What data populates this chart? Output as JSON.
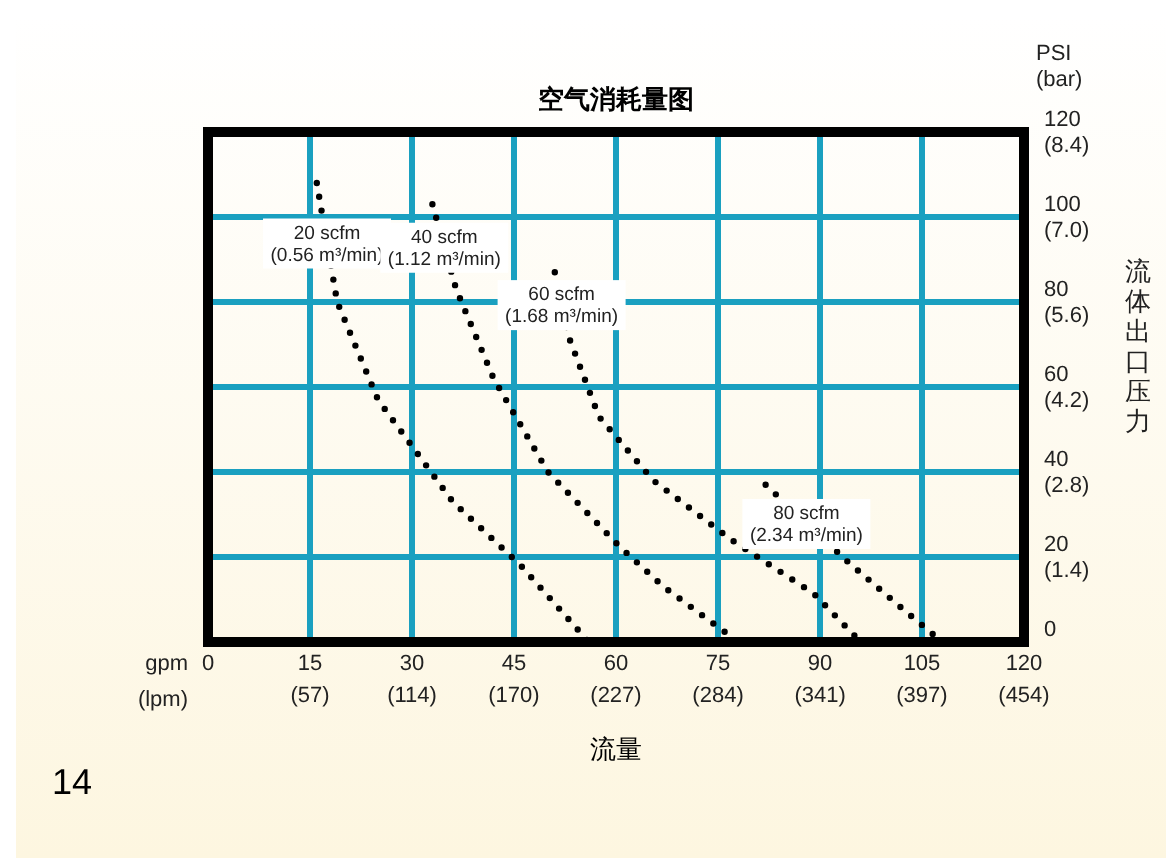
{
  "chart_data": {
    "type": "line",
    "title": "空气消耗量图",
    "xlabel": "流量",
    "y2label": "流体出口压力",
    "annotations": [
      "gpm",
      "(lpm)",
      "PSI",
      "(bar)",
      "14"
    ],
    "xlim": [
      0,
      120
    ],
    "ylim": [
      0,
      120
    ],
    "xticks": [
      0,
      15,
      30,
      45,
      60,
      75,
      90,
      105,
      120
    ],
    "x2lim": [
      0,
      454.2
    ],
    "x2ticks": [
      {
        "value": 56.8,
        "label": "(57)"
      },
      {
        "value": 113.6,
        "label": "(114)"
      },
      {
        "value": 170.3,
        "label": "(170)"
      },
      {
        "value": 227.1,
        "label": "(227)"
      },
      {
        "value": 283.9,
        "label": "(284)"
      },
      {
        "value": 340.7,
        "label": "(341)"
      },
      {
        "value": 397.4,
        "label": "(397)"
      },
      {
        "value": 454.2,
        "label": "(454)"
      }
    ],
    "yticks": [
      0,
      20,
      40,
      60,
      80,
      100,
      120
    ],
    "y2lim": [
      0,
      8.4
    ],
    "y2ticks": [
      {
        "value": 1.4,
        "label": "(1.4)"
      },
      {
        "value": 2.8,
        "label": "(2.8)"
      },
      {
        "value": 4.2,
        "label": "(4.2)"
      },
      {
        "value": 5.6,
        "label": "(5.6)"
      },
      {
        "value": 7,
        "label": "(7.0)"
      },
      {
        "value": 8.4,
        "label": "(8.4)"
      }
    ],
    "grid": true,
    "marker": "none",
    "line_style": "dotted",
    "series": [
      {
        "name": "20 scfm\n(0.56 m³/min)",
        "color": "#000000",
        "x": [
          16,
          19,
          25,
          36,
          46,
          56
        ],
        "values": [
          108,
          80,
          57,
          33,
          18,
          0
        ]
      },
      {
        "name": "40 scfm\n(1.12 m³/min)",
        "color": "#000000",
        "x": [
          33,
          36.5,
          42,
          50,
          60.5,
          67,
          78
        ],
        "values": [
          103,
          83,
          62,
          40,
          22.5,
          13,
          0
        ]
      },
      {
        "name": "60 scfm\n(1.68 m³/min)",
        "color": "#000000",
        "x": [
          51,
          53,
          57.5,
          65.5,
          77,
          89,
          96
        ],
        "values": [
          87,
          72,
          53,
          38,
          24,
          11.5,
          0
        ]
      },
      {
        "name": "80 scfm\n(2.34 m³/min)",
        "color": "#000000",
        "x": [
          82,
          94,
          102,
          108
        ],
        "values": [
          37,
          19,
          8,
          0
        ]
      }
    ]
  }
}
